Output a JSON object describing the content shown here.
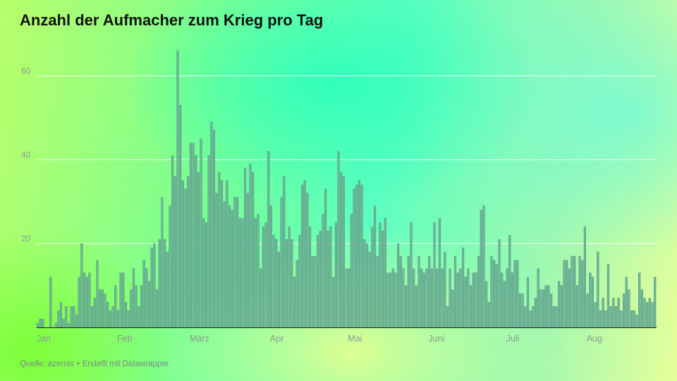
{
  "title": "Anzahl der Aufmacher zum Krieg pro Tag",
  "footer": {
    "source": "Quelle: azernis",
    "separator": "•",
    "credit": "Erstellt mit Datawrapper"
  },
  "colors": {
    "bar": "#6fb59a",
    "bar_stroke": "#4a8c76",
    "grid": "#ffffff",
    "tick_label": "#8a9a94",
    "axis": "#222222"
  },
  "chart_data": {
    "type": "bar",
    "title": "Anzahl der Aufmacher zum Krieg pro Tag",
    "xlabel": "",
    "ylabel": "",
    "ylim": [
      0,
      68
    ],
    "yticks": [
      20,
      40,
      60
    ],
    "grid": true,
    "x_start": "2022-01-01",
    "x_end": "2022-08-27",
    "month_ticks": [
      {
        "label": "Jan",
        "date": "2022-01-01"
      },
      {
        "label": "Feb",
        "date": "2022-02-01"
      },
      {
        "label": "März",
        "date": "2022-03-01"
      },
      {
        "label": "Apr",
        "date": "2022-04-01"
      },
      {
        "label": "Mai",
        "date": "2022-05-01"
      },
      {
        "label": "Juni",
        "date": "2022-06-01"
      },
      {
        "label": "Juli",
        "date": "2022-07-01"
      },
      {
        "label": "Aug",
        "date": "2022-08-01"
      }
    ],
    "values": [
      1,
      2,
      2,
      0,
      0,
      12,
      0,
      1,
      4,
      6,
      2,
      5,
      1,
      5,
      5,
      3,
      12,
      20,
      13,
      12,
      13,
      5,
      7,
      16,
      9,
      9,
      8,
      6,
      4,
      5,
      10,
      4,
      13,
      13,
      6,
      4,
      9,
      14,
      10,
      5,
      10,
      16,
      14,
      11,
      19,
      20,
      9,
      21,
      31,
      21,
      18,
      29,
      41,
      36,
      66,
      53,
      35,
      33,
      36,
      44,
      44,
      41,
      37,
      45,
      26,
      25,
      41,
      49,
      47,
      32,
      37,
      35,
      30,
      35,
      29,
      28,
      31,
      31,
      26,
      26,
      38,
      32,
      39,
      37,
      26,
      27,
      14,
      24,
      25,
      42,
      29,
      22,
      21,
      18,
      31,
      36,
      21,
      24,
      21,
      12,
      16,
      22,
      34,
      35,
      32,
      24,
      17,
      17,
      22,
      23,
      27,
      33,
      23,
      24,
      12,
      25,
      42,
      37,
      36,
      14,
      14,
      27,
      33,
      34,
      35,
      34,
      21,
      20,
      18,
      24,
      29,
      17,
      25,
      23,
      26,
      13,
      13,
      14,
      13,
      20,
      17,
      14,
      10,
      17,
      25,
      14,
      10,
      17,
      14,
      13,
      14,
      17,
      14,
      25,
      14,
      26,
      14,
      18,
      5,
      14,
      9,
      17,
      13,
      14,
      19,
      12,
      14,
      10,
      13,
      13,
      17,
      28,
      29,
      11,
      6,
      17,
      16,
      15,
      21,
      13,
      11,
      14,
      22,
      13,
      16,
      16,
      8,
      8,
      5,
      12,
      4,
      5,
      7,
      14,
      9,
      9,
      10,
      10,
      8,
      5,
      5,
      11,
      10,
      16,
      16,
      14,
      17,
      17,
      10,
      17,
      16,
      24,
      8,
      13,
      12,
      6,
      18,
      4,
      7,
      4,
      15,
      5,
      7,
      5,
      7,
      4,
      8,
      12,
      9,
      4,
      4,
      3,
      13,
      9,
      7,
      6,
      7,
      6,
      12
    ]
  }
}
